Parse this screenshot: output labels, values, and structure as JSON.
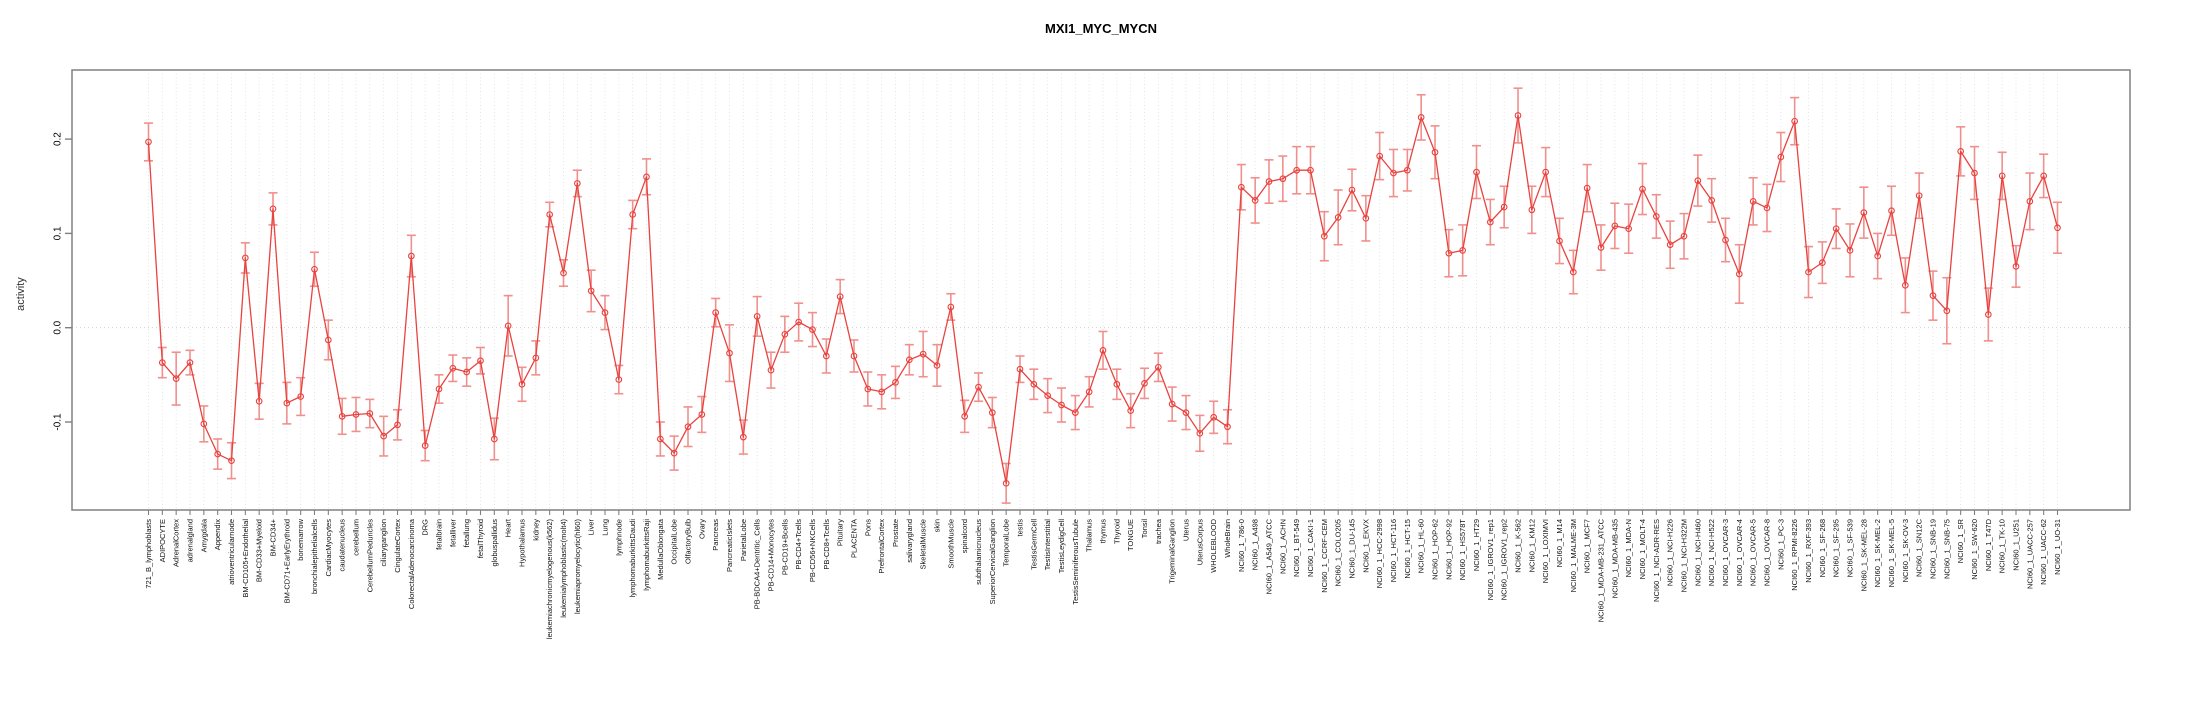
{
  "chart_data": {
    "type": "line",
    "title": "MXI1_MYC_MYCN",
    "xlabel": "",
    "ylabel": "activity",
    "ylim": [
      -0.195,
      0.275
    ],
    "grid": true,
    "legend_position": "none",
    "ytick_labels": [
      "-0.1",
      "0.0",
      "0.1",
      "0.2"
    ],
    "ytick_values": [
      -0.1,
      0.0,
      0.1,
      0.2
    ],
    "zero_line": 0.0,
    "marker": "open-circle",
    "error_bars": true,
    "colors": {
      "line": "#e8433f",
      "error_bar": "#f0908d",
      "grid": "#dedede",
      "axis": "#808080",
      "text": "#000000"
    },
    "categories": [
      "721_B_lymphoblasts",
      "ADIPOCYTE",
      "AdrenalCortex",
      "adrenalgland",
      "Amygdala",
      "Appendix",
      "atrioventricularnode",
      "BM-CD105+Endothelial",
      "BM-CD33+Myeloid",
      "BM-CD34+",
      "BM-CD71+EarlyErythroid",
      "bonemarrow",
      "bronchialepithelialcells",
      "CardiacMyocytes",
      "caudatenucleus",
      "cerebellum",
      "CerebellumPeduncles",
      "ciliaryganglion",
      "CingulateCortex",
      "ColorectalAdenocarcinoma",
      "DRG",
      "fetalbrain",
      "fetalliver",
      "fetallung",
      "fetalThyroid",
      "globuspallidus",
      "Heart",
      "Hypothalamus",
      "kidney",
      "leukemiachronicmyelogenous(k562)",
      "leukemialymphoblastic(molt4)",
      "leukemiapromyelocytic(hl60)",
      "Liver",
      "Lung",
      "lymphnode",
      "lymphomaburkittsDaudi",
      "lymphomaburkittsRaji",
      "MedullaOblongata",
      "OccipitalLobe",
      "OlfactoryBulb",
      "Ovary",
      "Pancreas",
      "PancreaticIslets",
      "ParietalLobe",
      "PB-BDCA4+Dentritic_Cells",
      "PB-CD14+Monocytes",
      "PB-CD19+Bcells",
      "PB-CD4+Tcells",
      "PB-CD56+NKCells",
      "PB-CD8+Tcells",
      "Pituitary",
      "PLACENTA",
      "Pons",
      "PrefrontalCortex",
      "Prostate",
      "salivarygland",
      "SkeletalMuscle",
      "skin",
      "SmoothMuscle",
      "spinalcord",
      "subthalamicnucleus",
      "SuperiorCervicalGanglion",
      "TemporalLobe",
      "testis",
      "TestisGermCell",
      "TestisInterstitial",
      "TestisLeydigCell",
      "TestisSeminiferousTubule",
      "Thalamus",
      "thymus",
      "Thyroid",
      "TONGUE",
      "Tonsil",
      "trachea",
      "TrigeminalGanglion",
      "Uterus",
      "UterusCorpus",
      "WHOLEBLOOD",
      "WholeBrain",
      "NCI60_1_786-0",
      "NCI60_1_A498",
      "NCI60_1_A549_ATCC",
      "NCI60_1_ACHN",
      "NCI60_1_BT-549",
      "NCI60_1_CAKI-1",
      "NCI60_1_CCRF-CEM",
      "NCI60_1_COLO205",
      "NCI60_1_DU-145",
      "NCI60_1_EKVX",
      "NCI60_1_HCC-2998",
      "NCI60_1_HCT-116",
      "NCI60_1_HCT-15",
      "NCI60_1_HL-60",
      "NCI60_1_HOP-62",
      "NCI60_1_HOP-92",
      "NCI60_1_HS578T",
      "NCI60_1_HT29",
      "NCI60_1_IGROV1_rep1",
      "NCI60_1_IGROV1_rep2",
      "NCI60_1_K-562",
      "NCI60_1_KM12",
      "NCI60_1_LOXIMVI",
      "NCI60_1_M14",
      "NCI60_1_MALME-3M",
      "NCI60_1_MCF7",
      "NCI60_1_MDA-MB-231_ATCC",
      "NCI60_1_MDA-MB-435",
      "NCI60_1_MDA-N",
      "NCI60_1_MOLT-4",
      "NCI60_1_NCI-ADR-RES",
      "NCI60_1_NCI-H226",
      "NCI60_1_NCI-H322M",
      "NCI60_1_NCI-H460",
      "NCI60_1_NCI-H522",
      "NCI60_1_OVCAR-3",
      "NCI60_1_OVCAR-4",
      "NCI60_1_OVCAR-5",
      "NCI60_1_OVCAR-8",
      "NCI60_1_PC-3",
      "NCI60_1_RPMI-8226",
      "NCI60_1_RXF-393",
      "NCI60_1_SF-268",
      "NCI60_1_SF-295",
      "NCI60_1_SF-539",
      "NCI60_1_SK-MEL-28",
      "NCI60_1_SK-MEL-2",
      "NCI60_1_SK-MEL-5",
      "NCI60_1_SK-OV-3",
      "NCI60_1_SN12C",
      "NCI60_1_SNB-19",
      "NCI60_1_SNB-75",
      "NCI60_1_SR",
      "NCI60_1_SW-620",
      "NCI60_1_T47D",
      "NCI60_1_TK-10",
      "NCI60_1_U251",
      "NCI60_1_UACC-257",
      "NCI60_1_UACC-62",
      "NCI60_1_UO-31"
    ],
    "values": [
      0.197,
      -0.037,
      -0.054,
      -0.037,
      -0.102,
      -0.134,
      -0.141,
      0.074,
      -0.078,
      0.126,
      -0.08,
      -0.073,
      0.062,
      -0.013,
      -0.094,
      -0.092,
      -0.091,
      -0.115,
      -0.103,
      0.076,
      -0.125,
      -0.065,
      -0.043,
      -0.047,
      -0.035,
      -0.118,
      0.002,
      -0.06,
      -0.032,
      0.12,
      0.058,
      0.153,
      0.039,
      0.016,
      -0.055,
      0.12,
      0.16,
      -0.118,
      -0.133,
      -0.105,
      -0.092,
      0.016,
      -0.027,
      -0.116,
      0.012,
      -0.045,
      -0.007,
      0.006,
      -0.002,
      -0.03,
      0.033,
      -0.03,
      -0.065,
      -0.068,
      -0.058,
      -0.034,
      -0.028,
      -0.04,
      0.022,
      -0.094,
      -0.063,
      -0.09,
      -0.165,
      -0.044,
      -0.06,
      -0.072,
      -0.082,
      -0.09,
      -0.068,
      -0.024,
      -0.06,
      -0.088,
      -0.059,
      -0.042,
      -0.081,
      -0.09,
      -0.112,
      -0.095,
      -0.105,
      0.149,
      0.135,
      0.155,
      0.158,
      0.167,
      0.167,
      0.097,
      0.117,
      0.146,
      0.116,
      0.182,
      0.164,
      0.167,
      0.223,
      0.186,
      0.079,
      0.082,
      0.165,
      0.112,
      0.128,
      0.225,
      0.125,
      0.165,
      0.092,
      0.059,
      0.148,
      0.085,
      0.108,
      0.105,
      0.147,
      0.118,
      0.088,
      0.097,
      0.156,
      0.135,
      0.093,
      0.057,
      0.134,
      0.127,
      0.181,
      0.219,
      0.059,
      0.069,
      0.105,
      0.082,
      0.122,
      0.076,
      0.124,
      0.045,
      0.14,
      0.034,
      0.018,
      0.187,
      0.164,
      0.014,
      0.161,
      0.065,
      0.134,
      0.161,
      0.106
    ],
    "errors": [
      0.02,
      0.016,
      0.028,
      0.013,
      0.019,
      0.016,
      0.019,
      0.016,
      0.019,
      0.017,
      0.022,
      0.02,
      0.018,
      0.021,
      0.019,
      0.018,
      0.015,
      0.021,
      0.016,
      0.022,
      0.016,
      0.015,
      0.014,
      0.015,
      0.014,
      0.022,
      0.032,
      0.018,
      0.018,
      0.013,
      0.014,
      0.014,
      0.022,
      0.018,
      0.015,
      0.015,
      0.019,
      0.018,
      0.018,
      0.021,
      0.019,
      0.015,
      0.03,
      0.018,
      0.021,
      0.019,
      0.019,
      0.02,
      0.018,
      0.018,
      0.018,
      0.017,
      0.018,
      0.018,
      0.017,
      0.016,
      0.024,
      0.022,
      0.014,
      0.017,
      0.015,
      0.016,
      0.021,
      0.014,
      0.016,
      0.018,
      0.018,
      0.018,
      0.016,
      0.02,
      0.016,
      0.018,
      0.016,
      0.015,
      0.018,
      0.018,
      0.019,
      0.017,
      0.018,
      0.024,
      0.024,
      0.023,
      0.024,
      0.025,
      0.025,
      0.026,
      0.029,
      0.022,
      0.024,
      0.025,
      0.025,
      0.022,
      0.024,
      0.028,
      0.025,
      0.027,
      0.028,
      0.024,
      0.022,
      0.029,
      0.025,
      0.026,
      0.024,
      0.023,
      0.025,
      0.024,
      0.024,
      0.026,
      0.027,
      0.023,
      0.025,
      0.024,
      0.027,
      0.023,
      0.023,
      0.031,
      0.025,
      0.025,
      0.026,
      0.025,
      0.027,
      0.022,
      0.021,
      0.028,
      0.027,
      0.024,
      0.026,
      0.029,
      0.024,
      0.026,
      0.035,
      0.026,
      0.028,
      0.028,
      0.025,
      0.022,
      0.03,
      0.023,
      0.027
    ]
  }
}
